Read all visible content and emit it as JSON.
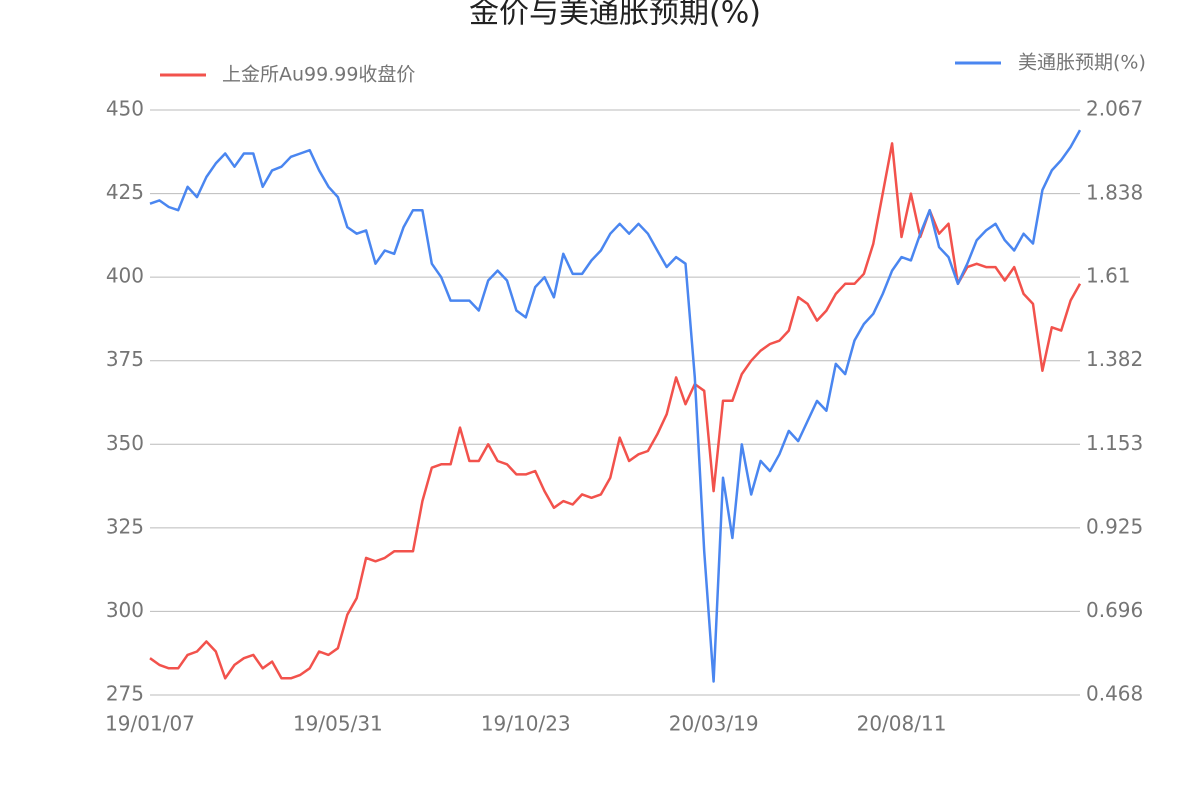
{
  "chart_data": {
    "type": "line",
    "title": "金价与美通胀预期(%)",
    "categories": [
      "19/01/07",
      null,
      null,
      null,
      null,
      null,
      null,
      null,
      null,
      null,
      null,
      null,
      null,
      null,
      null,
      null,
      null,
      null,
      null,
      null,
      "19/05/31",
      null,
      null,
      null,
      null,
      null,
      null,
      null,
      null,
      null,
      null,
      null,
      null,
      null,
      null,
      null,
      null,
      null,
      null,
      null,
      "19/10/23",
      null,
      null,
      null,
      null,
      null,
      null,
      null,
      null,
      null,
      null,
      null,
      null,
      null,
      null,
      null,
      null,
      null,
      null,
      null,
      "20/03/19",
      null,
      null,
      null,
      null,
      null,
      null,
      null,
      null,
      null,
      null,
      null,
      null,
      null,
      null,
      null,
      null,
      null,
      null,
      null,
      "20/08/11",
      null,
      null,
      null,
      null,
      null,
      null,
      null,
      null,
      null,
      null,
      null,
      null,
      null,
      null,
      null,
      null,
      null,
      null,
      null
    ],
    "series": [
      {
        "name": "上金所Au99.99收盘价",
        "color": "#f2524c",
        "values": [
          286,
          284,
          283,
          283,
          287,
          288,
          291,
          288,
          280,
          284,
          286,
          287,
          283,
          285,
          280,
          280,
          281,
          283,
          288,
          287,
          289,
          299,
          304,
          316,
          315,
          316,
          318,
          318,
          318,
          333,
          343,
          344,
          344,
          355,
          345,
          345,
          350,
          345,
          344,
          341,
          341,
          342,
          336,
          331,
          333,
          332,
          335,
          334,
          335,
          340,
          352,
          345,
          347,
          348,
          353,
          359,
          370,
          362,
          368,
          366,
          336,
          363,
          363,
          371,
          375,
          378,
          380,
          381,
          384,
          394,
          392,
          387,
          390,
          395,
          398,
          398,
          401,
          410,
          425,
          440,
          412,
          425,
          412,
          420,
          413,
          416,
          398,
          403,
          404,
          403,
          403,
          399,
          403,
          395,
          392,
          372,
          385,
          384,
          393,
          398
        ]
      },
      {
        "name": "美通胀预期(%)",
        "color": "#4a86f0",
        "axis": "y2",
        "values": [
          1.811,
          1.82,
          1.802,
          1.793,
          1.857,
          1.829,
          1.884,
          1.921,
          1.948,
          1.912,
          1.948,
          1.948,
          1.857,
          1.902,
          1.912,
          1.939,
          1.948,
          1.957,
          1.902,
          1.857,
          1.829,
          1.747,
          1.729,
          1.738,
          1.647,
          1.683,
          1.674,
          1.747,
          1.793,
          1.793,
          1.647,
          1.61,
          1.546,
          1.546,
          1.546,
          1.519,
          1.601,
          1.628,
          1.601,
          1.519,
          1.5,
          1.583,
          1.61,
          1.555,
          1.674,
          1.619,
          1.619,
          1.656,
          1.683,
          1.729,
          1.756,
          1.729,
          1.756,
          1.729,
          1.683,
          1.638,
          1.665,
          1.647,
          1.336,
          0.861,
          0.505,
          1.062,
          0.897,
          1.153,
          1.016,
          1.108,
          1.08,
          1.126,
          1.19,
          1.162,
          1.217,
          1.272,
          1.245,
          1.373,
          1.345,
          1.437,
          1.482,
          1.51,
          1.564,
          1.628,
          1.665,
          1.656,
          1.729,
          1.793,
          1.692,
          1.665,
          1.592,
          1.647,
          1.711,
          1.738,
          1.756,
          1.711,
          1.683,
          1.729,
          1.702,
          1.848,
          1.902,
          1.93,
          1.966,
          2.012
        ]
      }
    ],
    "ylim": [
      275,
      450
    ],
    "yticks": [
      275,
      300,
      325,
      350,
      375,
      400,
      425,
      450
    ],
    "y2lim": [
      0.468,
      2.067
    ],
    "y2ticks": [
      0.468,
      0.696,
      0.925,
      1.153,
      1.382,
      1.61,
      1.838,
      2.067
    ],
    "grid": true
  }
}
